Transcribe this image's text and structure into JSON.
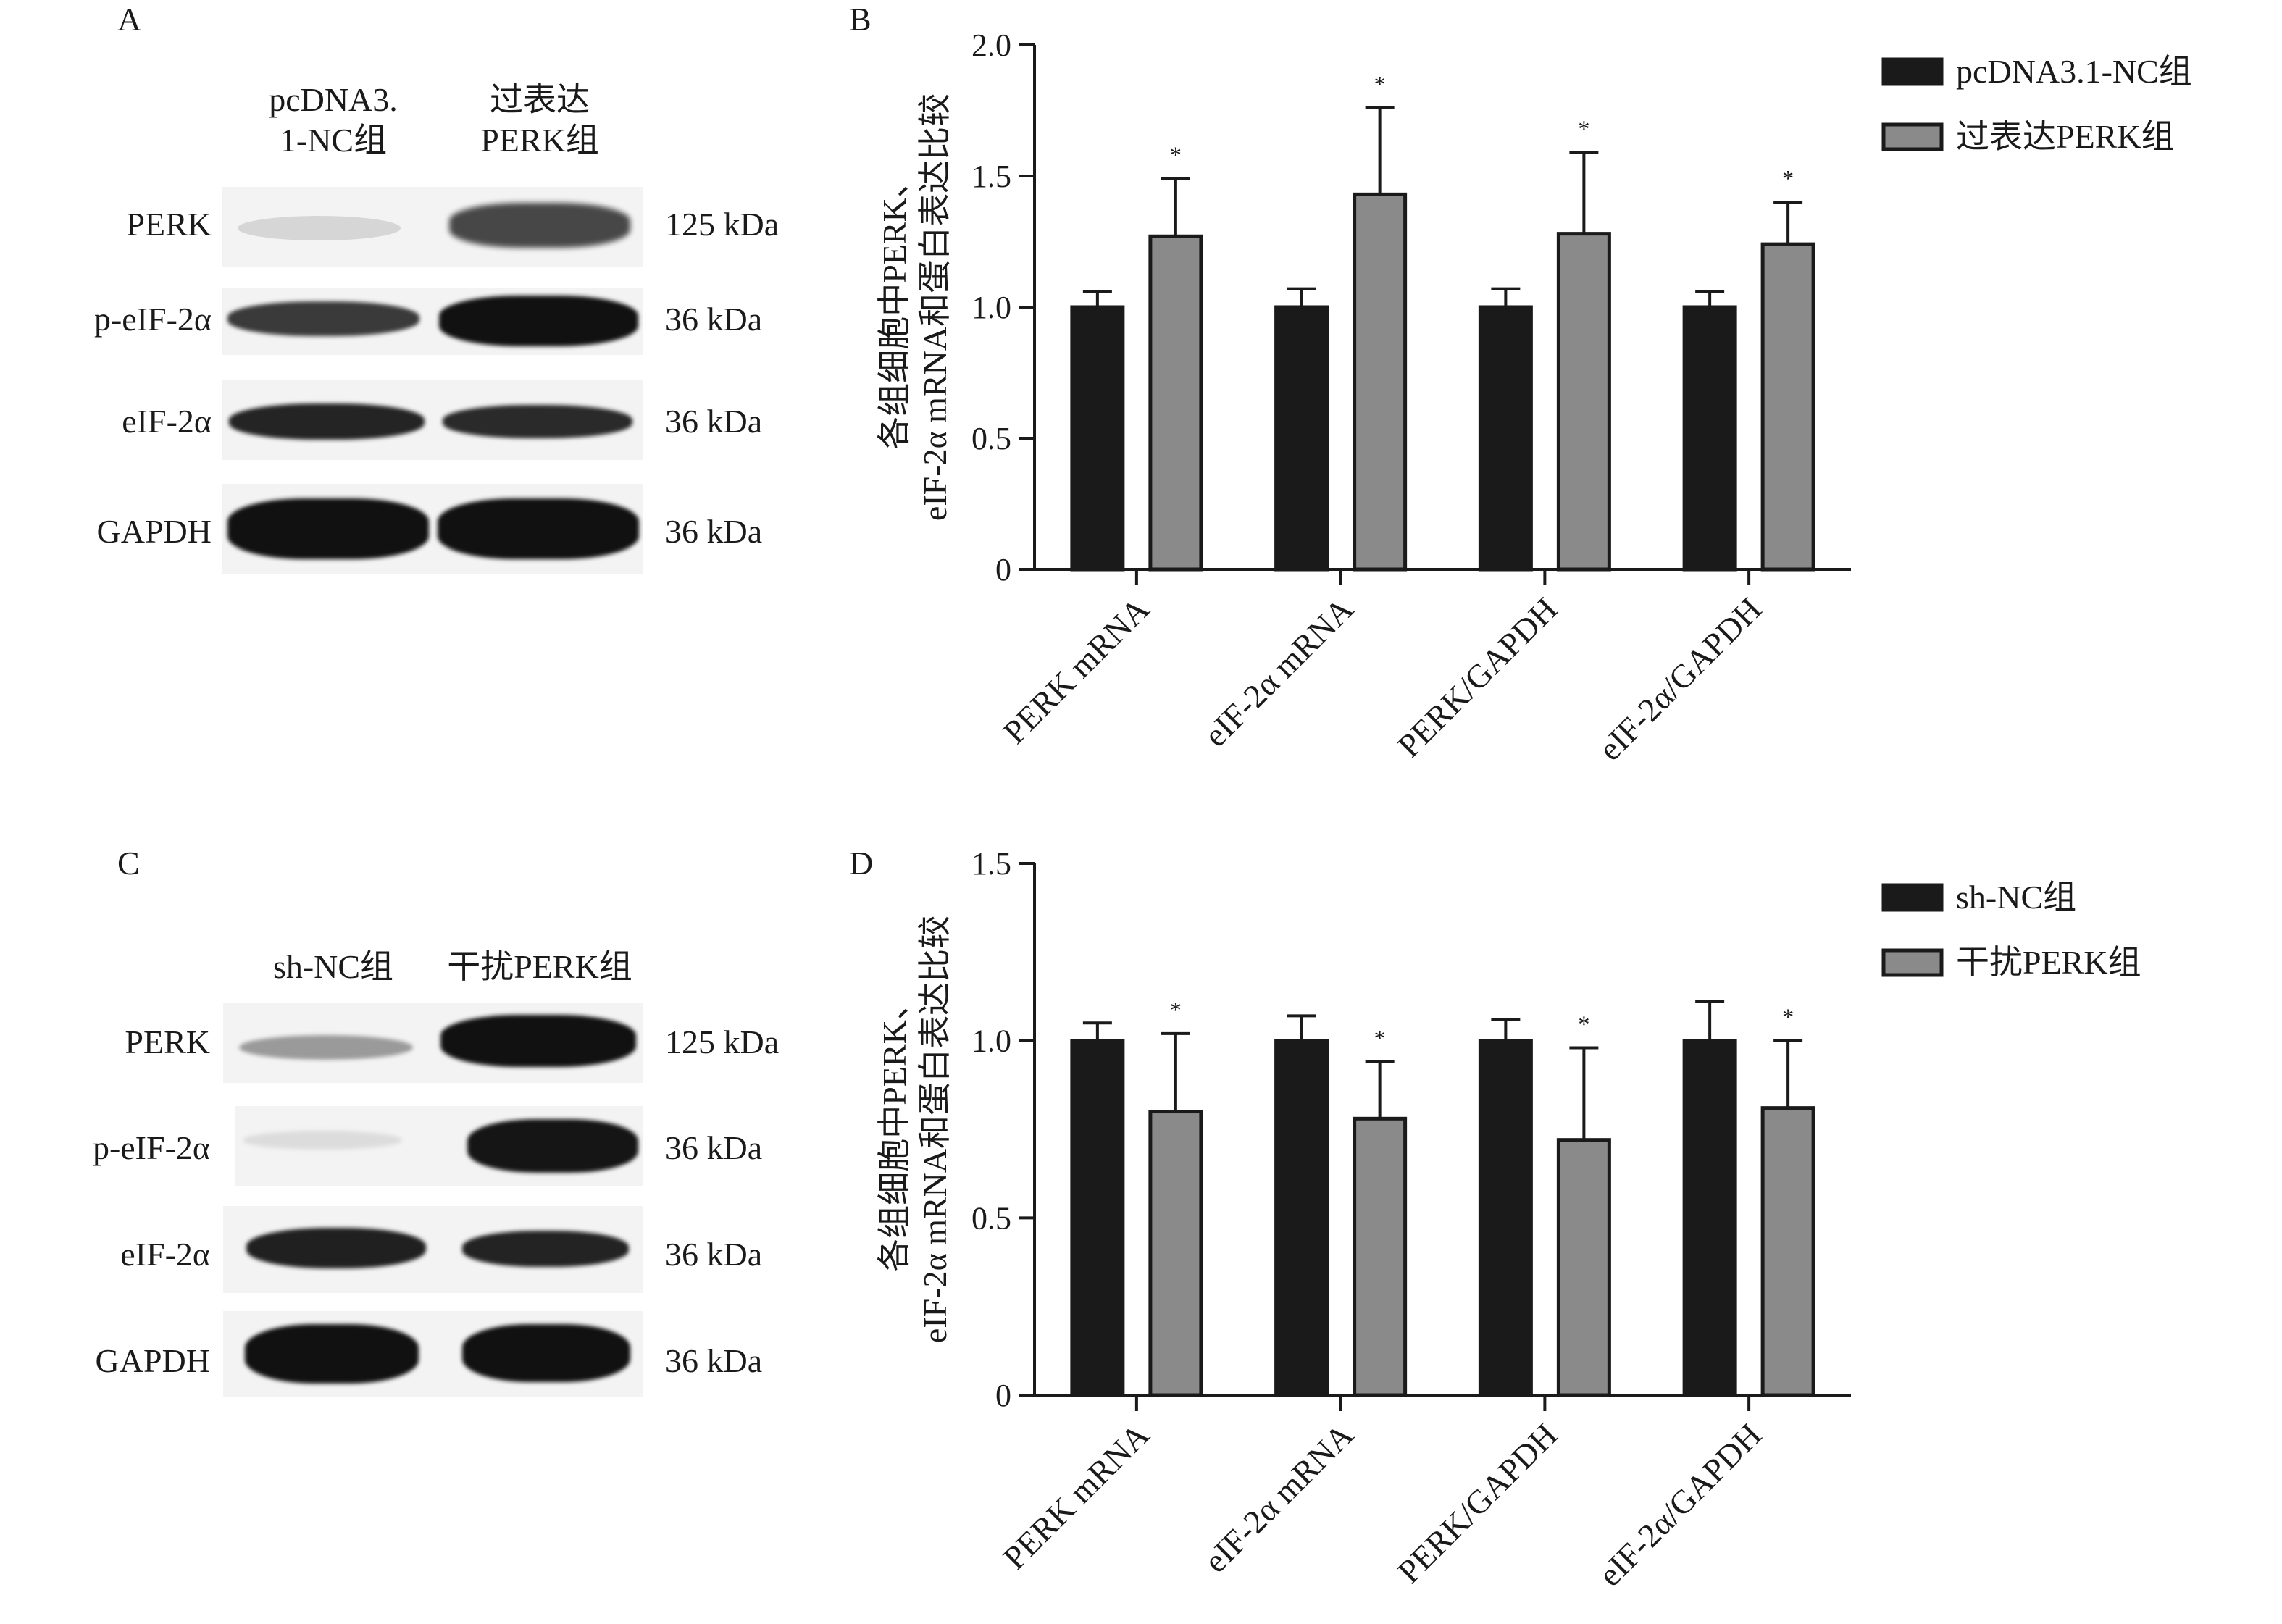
{
  "panels": {
    "A": {
      "letter": "A",
      "columns": [
        "pcDNA3.\n1-NC组",
        "过表达\nPERK组"
      ],
      "rows": [
        {
          "label": "PERK",
          "kda": "125 kDa"
        },
        {
          "label": "p-eIF-2α",
          "kda": "36 kDa"
        },
        {
          "label": "eIF-2α",
          "kda": "36 kDa"
        },
        {
          "label": "GAPDH",
          "kda": "36 kDa"
        }
      ]
    },
    "C": {
      "letter": "C",
      "columns": [
        "sh-NC组",
        "干扰PERK组"
      ],
      "rows": [
        {
          "label": "PERK",
          "kda": "125 kDa"
        },
        {
          "label": "p-eIF-2α",
          "kda": "36 kDa"
        },
        {
          "label": "eIF-2α",
          "kda": "36 kDa"
        },
        {
          "label": "GAPDH",
          "kda": "36 kDa"
        }
      ]
    }
  },
  "chart_data": [
    {
      "panel": "B",
      "type": "bar",
      "title": "",
      "ylabel_lines": [
        "各组细胞中PERK、",
        "eIF-2α mRNA和蛋白表达比较"
      ],
      "xlabel": "",
      "categories": [
        "PERK mRNA",
        "eIF-2α mRNA",
        "PERK/GAPDH",
        "eIF-2α/GAPDH"
      ],
      "ylim": [
        0,
        2.0
      ],
      "yticks": [
        "0",
        "0.5",
        "1.0",
        "1.5",
        "2.0"
      ],
      "series": [
        {
          "name": "pcDNA3.1-NC组",
          "color": "#1a1a1a",
          "values": [
            1.0,
            1.0,
            1.0,
            1.0
          ],
          "errors": [
            0.06,
            0.07,
            0.07,
            0.06
          ]
        },
        {
          "name": "过表达PERK组",
          "color": "#8a8a8a",
          "values": [
            1.27,
            1.43,
            1.28,
            1.24
          ],
          "errors": [
            0.22,
            0.33,
            0.31,
            0.16
          ],
          "significance": [
            "*",
            "*",
            "*",
            "*"
          ]
        }
      ],
      "legend_position": "top-right",
      "grid": false
    },
    {
      "panel": "D",
      "type": "bar",
      "title": "",
      "ylabel_lines": [
        "各组细胞中PERK、",
        "eIF-2α mRNA和蛋白表达比较"
      ],
      "xlabel": "",
      "categories": [
        "PERK mRNA",
        "eIF-2α mRNA",
        "PERK/GAPDH",
        "eIF-2α/GAPDH"
      ],
      "ylim": [
        0,
        1.5
      ],
      "yticks": [
        "0",
        "0.5",
        "1.0",
        "1.5"
      ],
      "series": [
        {
          "name": "sh-NC组",
          "color": "#1a1a1a",
          "values": [
            1.0,
            1.0,
            1.0,
            1.0
          ],
          "errors": [
            0.05,
            0.07,
            0.06,
            0.11
          ]
        },
        {
          "name": "干扰PERK组",
          "color": "#8a8a8a",
          "values": [
            0.8,
            0.78,
            0.72,
            0.81
          ],
          "errors": [
            0.22,
            0.16,
            0.26,
            0.19
          ],
          "significance": [
            "*",
            "*",
            "*",
            "*"
          ]
        }
      ],
      "legend_position": "top-right",
      "grid": false
    }
  ]
}
